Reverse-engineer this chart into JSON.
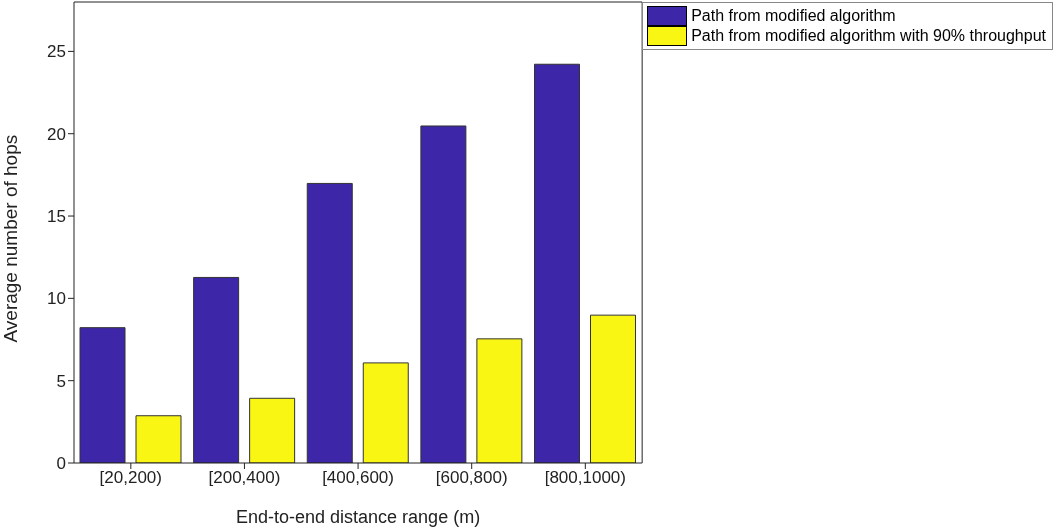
{
  "chart_data": {
    "type": "bar",
    "xlabel": "End-to-end distance range (m)",
    "ylabel": "Average number of hops",
    "categories": [
      "[20,200)",
      "[200,400)",
      "[400,600)",
      "[600,800)",
      "[800,1000)"
    ],
    "series": [
      {
        "name": "Path from modified algorithm",
        "color": "#3d26a8",
        "values": [
          8.22,
          11.27,
          16.98,
          20.47,
          24.22
        ]
      },
      {
        "name": "Path from modified algorithm with 90% throughput",
        "color": "#f9f614",
        "values": [
          2.87,
          3.93,
          6.08,
          7.54,
          8.98
        ]
      }
    ],
    "ylim": [
      0,
      28
    ],
    "yticks": [
      0,
      5,
      10,
      15,
      20,
      25
    ],
    "grid": false,
    "legend": "top right"
  }
}
